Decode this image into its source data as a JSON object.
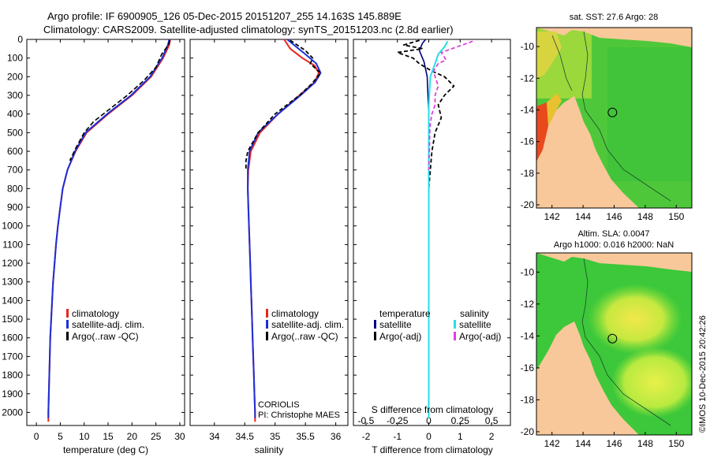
{
  "title": {
    "line1": "Argo profile: IF 6900905_126 05-Dec-2015 20151207_255 14.163S 145.889E",
    "line2": "Climatology: CARS2009. Satellite-adjusted climatology: synTS_20151203.nc (2.8d earlier)"
  },
  "colors": {
    "climatology": "#e8261f",
    "satellite": "#1c2fd6",
    "argo": "#000000",
    "sat_diff_temp": "#000080",
    "sat_diff_sal": "#22e0e8",
    "argo_diff_sal": "#e040e0",
    "land": "#f8c89a"
  },
  "y_ticks": [
    "0",
    "100",
    "200",
    "300",
    "400",
    "500",
    "600",
    "700",
    "800",
    "900",
    "1000",
    "1100",
    "1200",
    "1300",
    "1400",
    "1500",
    "1600",
    "1700",
    "1800",
    "1900",
    "2000"
  ],
  "chart_data": [
    {
      "type": "line",
      "xlabel": "temperature (deg C)",
      "xlim": [
        -2,
        31
      ],
      "ylim": [
        2070,
        0
      ],
      "x_ticks": [
        "0",
        "5",
        "10",
        "15",
        "20",
        "25",
        "30"
      ],
      "legend": [
        "climatology",
        "satellite-adj. clim.",
        "Argo(..raw -QC)"
      ],
      "series": [
        {
          "name": "climatology",
          "points": [
            [
              28,
              0
            ],
            [
              27.8,
              30
            ],
            [
              26.5,
              100
            ],
            [
              24,
              200
            ],
            [
              20,
              300
            ],
            [
              15,
              400
            ],
            [
              10.5,
              500
            ],
            [
              8.2,
              600
            ],
            [
              6.5,
              700
            ],
            [
              5.5,
              800
            ],
            [
              5,
              900
            ],
            [
              4.5,
              1000
            ],
            [
              4.1,
              1100
            ],
            [
              3.8,
              1200
            ],
            [
              3.5,
              1300
            ],
            [
              3.3,
              1400
            ],
            [
              3.1,
              1500
            ],
            [
              2.9,
              1600
            ],
            [
              2.8,
              1700
            ],
            [
              2.7,
              1800
            ],
            [
              2.6,
              1900
            ],
            [
              2.5,
              2000
            ],
            [
              2.5,
              2050
            ]
          ]
        },
        {
          "name": "satellite-adj. clim.",
          "points": [
            [
              27.8,
              0
            ],
            [
              27.5,
              30
            ],
            [
              26.3,
              100
            ],
            [
              23.8,
              200
            ],
            [
              19.8,
              300
            ],
            [
              14.8,
              400
            ],
            [
              10.3,
              500
            ],
            [
              8.1,
              600
            ],
            [
              6.5,
              700
            ],
            [
              5.5,
              800
            ],
            [
              5,
              900
            ],
            [
              4.5,
              1000
            ],
            [
              4.1,
              1100
            ],
            [
              3.8,
              1200
            ],
            [
              3.5,
              1300
            ],
            [
              3.3,
              1400
            ],
            [
              3.1,
              1500
            ],
            [
              2.9,
              1600
            ],
            [
              2.8,
              1700
            ],
            [
              2.7,
              1800
            ],
            [
              2.6,
              1900
            ],
            [
              2.5,
              2000
            ],
            [
              2.5,
              2030
            ]
          ]
        },
        {
          "name": "Argo(..raw -QC)",
          "points": [
            [
              27.9,
              5
            ],
            [
              27.6,
              30
            ],
            [
              26.2,
              80
            ],
            [
              25,
              150
            ],
            [
              22.5,
              220
            ],
            [
              19,
              300
            ],
            [
              15,
              380
            ],
            [
              12,
              440
            ],
            [
              10,
              500
            ],
            [
              8.3,
              580
            ],
            [
              7,
              650
            ]
          ]
        }
      ]
    },
    {
      "type": "line",
      "xlabel": "salinity",
      "xlim": [
        33.6,
        36.2
      ],
      "ylim": [
        2070,
        0
      ],
      "x_ticks": [
        "34",
        "34.5",
        "35",
        "35.5",
        "36"
      ],
      "legend": [
        "climatology",
        "satellite-adj. clim.",
        "Argo(..raw -QC)"
      ],
      "annotation": [
        "CORIOLIS",
        "PI: Christophe MAES"
      ],
      "series": [
        {
          "name": "climatology",
          "points": [
            [
              35.15,
              0
            ],
            [
              35.25,
              50
            ],
            [
              35.45,
              100
            ],
            [
              35.65,
              140
            ],
            [
              35.72,
              180
            ],
            [
              35.65,
              230
            ],
            [
              35.4,
              300
            ],
            [
              35.05,
              400
            ],
            [
              34.75,
              500
            ],
            [
              34.6,
              600
            ],
            [
              34.56,
              700
            ],
            [
              34.55,
              800
            ],
            [
              34.56,
              900
            ],
            [
              34.57,
              1000
            ],
            [
              34.58,
              1100
            ],
            [
              34.59,
              1200
            ],
            [
              34.6,
              1300
            ],
            [
              34.61,
              1400
            ],
            [
              34.62,
              1500
            ],
            [
              34.63,
              1600
            ],
            [
              34.64,
              1700
            ],
            [
              34.65,
              1800
            ],
            [
              34.66,
              1900
            ],
            [
              34.67,
              2000
            ],
            [
              34.67,
              2050
            ]
          ]
        },
        {
          "name": "satellite-adj. clim.",
          "points": [
            [
              35.2,
              0
            ],
            [
              35.35,
              40
            ],
            [
              35.5,
              80
            ],
            [
              35.68,
              130
            ],
            [
              35.75,
              180
            ],
            [
              35.66,
              230
            ],
            [
              35.42,
              300
            ],
            [
              35.05,
              400
            ],
            [
              34.72,
              500
            ],
            [
              34.58,
              600
            ],
            [
              34.55,
              700
            ],
            [
              34.55,
              800
            ],
            [
              34.56,
              900
            ],
            [
              34.57,
              1000
            ],
            [
              34.58,
              1100
            ],
            [
              34.59,
              1200
            ],
            [
              34.6,
              1300
            ],
            [
              34.61,
              1400
            ],
            [
              34.62,
              1500
            ],
            [
              34.63,
              1600
            ],
            [
              34.64,
              1700
            ],
            [
              34.65,
              1800
            ],
            [
              34.66,
              1900
            ],
            [
              34.67,
              2000
            ],
            [
              34.67,
              2030
            ]
          ]
        },
        {
          "name": "Argo(..raw -QC)",
          "points": [
            [
              35.25,
              5
            ],
            [
              35.5,
              60
            ],
            [
              35.62,
              100
            ],
            [
              35.58,
              130
            ],
            [
              35.75,
              180
            ],
            [
              35.6,
              240
            ],
            [
              35.4,
              300
            ],
            [
              35.0,
              400
            ],
            [
              34.72,
              500
            ],
            [
              34.55,
              600
            ],
            [
              34.52,
              650
            ],
            [
              34.52,
              700
            ]
          ]
        }
      ]
    },
    {
      "type": "line",
      "xlabel": "T difference from climatology",
      "xlabel2": "S difference from climatology",
      "xlim": [
        -2.4,
        2.6
      ],
      "ylim": [
        2070,
        0
      ],
      "x_ticks": [
        "-2",
        "-1",
        "0",
        "1",
        "2"
      ],
      "x_ticks_top": [
        "-0.5",
        "-0.25",
        "0",
        "0.25",
        "0.5"
      ],
      "legend_headers": [
        "temperature",
        "salinity"
      ],
      "legend_temp": [
        "satellite",
        "Argo(-adj)"
      ],
      "legend_sal": [
        "satellite",
        "Argo(-adj)"
      ],
      "series": [
        {
          "name": "temperature satellite",
          "points": [
            [
              -0.1,
              0
            ],
            [
              -0.2,
              20
            ],
            [
              -0.3,
              60
            ],
            [
              -0.15,
              120
            ],
            [
              -0.05,
              200
            ],
            [
              0,
              400
            ],
            [
              0,
              1000
            ],
            [
              0,
              2030
            ]
          ]
        },
        {
          "name": "temperature Argo(-adj)",
          "points": [
            [
              -0.3,
              5
            ],
            [
              -0.8,
              30
            ],
            [
              -0.2,
              50
            ],
            [
              -1.0,
              70
            ],
            [
              -0.5,
              100
            ],
            [
              -0.3,
              130
            ],
            [
              -0.1,
              150
            ],
            [
              0.1,
              170
            ],
            [
              0.5,
              200
            ],
            [
              0.8,
              250
            ],
            [
              0.5,
              300
            ],
            [
              0.3,
              350
            ],
            [
              0.4,
              420
            ],
            [
              0.2,
              500
            ],
            [
              0.1,
              600
            ],
            [
              0.05,
              700
            ],
            [
              0,
              800
            ],
            [
              0,
              900
            ]
          ]
        },
        {
          "name": "salinity satellite",
          "points": [
            [
              0.6,
              10
            ],
            [
              0.5,
              40
            ],
            [
              0.3,
              80
            ],
            [
              0.2,
              130
            ],
            [
              0.05,
              200
            ],
            [
              0,
              350
            ],
            [
              0,
              1000
            ],
            [
              0,
              2030
            ]
          ]
        },
        {
          "name": "salinity Argo(-adj)",
          "points": [
            [
              1.4,
              10
            ],
            [
              0.9,
              40
            ],
            [
              0.4,
              70
            ],
            [
              0.55,
              110
            ],
            [
              0.3,
              130
            ],
            [
              0.15,
              170
            ],
            [
              0.2,
              200
            ],
            [
              0.3,
              250
            ],
            [
              0.2,
              300
            ],
            [
              0.2,
              350
            ],
            [
              0.1,
              400
            ],
            [
              0.05,
              450
            ],
            [
              0.03,
              500
            ],
            [
              0.02,
              600
            ],
            [
              0,
              700
            ]
          ]
        }
      ]
    },
    {
      "type": "heatmap",
      "title": "sat. SST: 27.6 Argo: 28",
      "xlim": [
        141,
        151
      ],
      "ylim": [
        -20.2,
        -8.8
      ],
      "x_ticks": [
        "142",
        "144",
        "146",
        "148",
        "150"
      ],
      "y_ticks": [
        "-10",
        "-12",
        "-14",
        "-16",
        "-18",
        "-20"
      ],
      "marker": [
        145.889,
        -14.163
      ]
    },
    {
      "type": "heatmap",
      "title": "Altim. SLA: 0.0047",
      "subtitle": "Argo h1000: 0.016 h2000: NaN",
      "xlim": [
        141,
        151
      ],
      "ylim": [
        -20.2,
        -8.8
      ],
      "x_ticks": [
        "142",
        "144",
        "146",
        "148",
        "150"
      ],
      "y_ticks": [
        "-10",
        "-12",
        "-14",
        "-16",
        "-18",
        "-20"
      ],
      "marker": [
        145.889,
        -14.163
      ]
    }
  ],
  "watermark": "©IMOS 10-Dec-2015 20:42:26"
}
